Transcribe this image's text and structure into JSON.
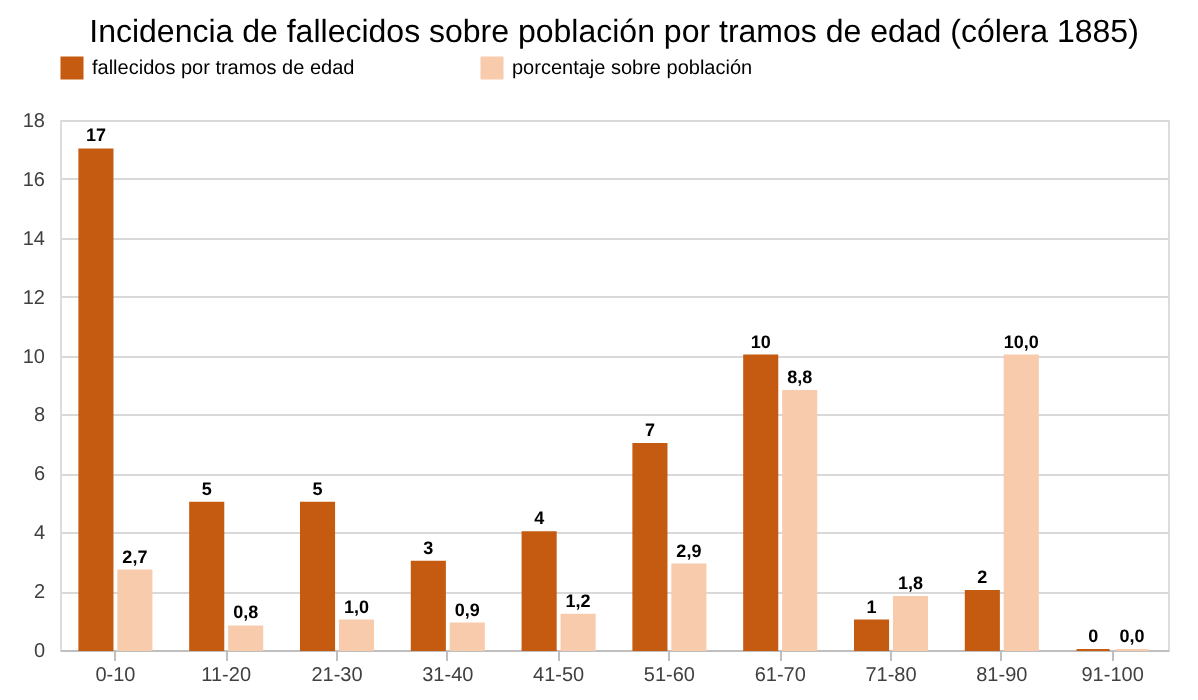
{
  "chart_data": {
    "type": "bar",
    "title": "Incidencia de fallecidos sobre población por tramos de edad (cólera 1885)",
    "categories": [
      "0-10",
      "11-20",
      "21-30",
      "31-40",
      "41-50",
      "51-60",
      "61-70",
      "71-80",
      "81-90",
      "91-100"
    ],
    "series": [
      {
        "name": "fallecidos por tramos de edad",
        "color": "#c55a11",
        "values": [
          17,
          5,
          5,
          3,
          4,
          7,
          10,
          1,
          2,
          0
        ],
        "value_labels": [
          "17",
          "5",
          "5",
          "3",
          "4",
          "7",
          "10",
          "1",
          "2",
          "0"
        ]
      },
      {
        "name": "porcentaje sobre población",
        "color": "#f8cbad",
        "values": [
          2.7,
          0.8,
          1.0,
          0.9,
          1.2,
          2.9,
          8.8,
          1.8,
          10.0,
          0.0
        ],
        "value_labels": [
          "2,7",
          "0,8",
          "1,0",
          "0,9",
          "1,2",
          "2,9",
          "8,8",
          "1,8",
          "10,0",
          "0,0"
        ]
      }
    ],
    "ylim": [
      0,
      18
    ],
    "yticks": [
      0,
      2,
      4,
      6,
      8,
      10,
      12,
      14,
      16,
      18
    ],
    "grid": "y",
    "legend": "top"
  }
}
